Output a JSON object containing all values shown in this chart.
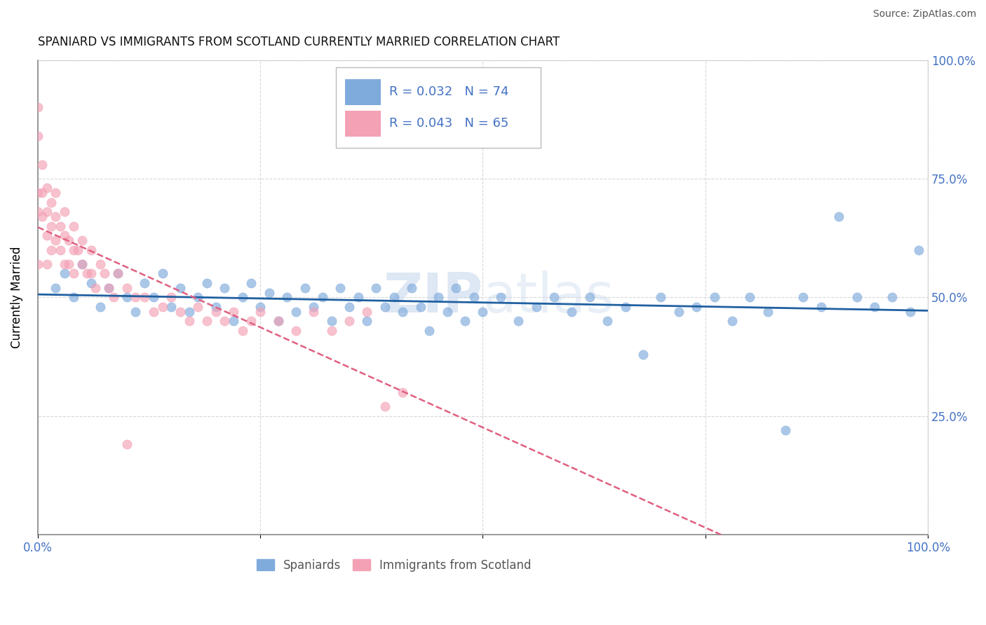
{
  "title": "SPANIARD VS IMMIGRANTS FROM SCOTLAND CURRENTLY MARRIED CORRELATION CHART",
  "source": "Source: ZipAtlas.com",
  "xlabel": "",
  "ylabel": "Currently Married",
  "xlim": [
    0,
    1.0
  ],
  "ylim": [
    0,
    1.0
  ],
  "xticks": [
    0.0,
    0.25,
    0.5,
    0.75,
    1.0
  ],
  "xticklabels": [
    "0.0%",
    "",
    "",
    "",
    "100.0%"
  ],
  "yticks": [
    0.0,
    0.25,
    0.5,
    0.75,
    1.0
  ],
  "yticklabels_right": [
    "",
    "25.0%",
    "50.0%",
    "75.0%",
    "100.0%"
  ],
  "spaniard_color": "#7faadc",
  "scotland_color": "#f4a0b5",
  "spaniard_line_color": "#2060a0",
  "scotland_line_color": "#e06080",
  "legend_label_1": "R = 0.032   N = 74",
  "legend_label_2": "R = 0.043   N = 65",
  "legend_labels": [
    "Spaniards",
    "Immigrants from Scotland"
  ],
  "spaniard_x": [
    0.02,
    0.03,
    0.04,
    0.05,
    0.06,
    0.07,
    0.08,
    0.09,
    0.1,
    0.11,
    0.12,
    0.13,
    0.14,
    0.15,
    0.16,
    0.17,
    0.18,
    0.19,
    0.2,
    0.21,
    0.22,
    0.23,
    0.24,
    0.25,
    0.26,
    0.27,
    0.28,
    0.29,
    0.3,
    0.31,
    0.32,
    0.33,
    0.34,
    0.35,
    0.36,
    0.37,
    0.38,
    0.39,
    0.4,
    0.41,
    0.42,
    0.43,
    0.44,
    0.45,
    0.46,
    0.47,
    0.48,
    0.49,
    0.5,
    0.52,
    0.54,
    0.56,
    0.58,
    0.6,
    0.62,
    0.64,
    0.66,
    0.68,
    0.7,
    0.72,
    0.74,
    0.76,
    0.78,
    0.8,
    0.82,
    0.84,
    0.86,
    0.88,
    0.9,
    0.92,
    0.94,
    0.96,
    0.98,
    0.99
  ],
  "spaniard_y": [
    0.52,
    0.55,
    0.5,
    0.57,
    0.53,
    0.48,
    0.52,
    0.55,
    0.5,
    0.47,
    0.53,
    0.5,
    0.55,
    0.48,
    0.52,
    0.47,
    0.5,
    0.53,
    0.48,
    0.52,
    0.45,
    0.5,
    0.53,
    0.48,
    0.51,
    0.45,
    0.5,
    0.47,
    0.52,
    0.48,
    0.5,
    0.45,
    0.52,
    0.48,
    0.5,
    0.45,
    0.52,
    0.48,
    0.5,
    0.47,
    0.52,
    0.48,
    0.43,
    0.5,
    0.47,
    0.52,
    0.45,
    0.5,
    0.47,
    0.5,
    0.45,
    0.48,
    0.5,
    0.47,
    0.5,
    0.45,
    0.48,
    0.38,
    0.5,
    0.47,
    0.48,
    0.5,
    0.45,
    0.5,
    0.47,
    0.22,
    0.5,
    0.48,
    0.67,
    0.5,
    0.48,
    0.5,
    0.47,
    0.6
  ],
  "scotland_x": [
    0.0,
    0.0,
    0.0,
    0.0,
    0.0,
    0.005,
    0.005,
    0.005,
    0.01,
    0.01,
    0.01,
    0.01,
    0.015,
    0.015,
    0.015,
    0.02,
    0.02,
    0.02,
    0.025,
    0.025,
    0.03,
    0.03,
    0.03,
    0.035,
    0.035,
    0.04,
    0.04,
    0.04,
    0.045,
    0.05,
    0.05,
    0.055,
    0.06,
    0.06,
    0.065,
    0.07,
    0.075,
    0.08,
    0.085,
    0.09,
    0.1,
    0.11,
    0.12,
    0.13,
    0.14,
    0.15,
    0.16,
    0.17,
    0.18,
    0.19,
    0.2,
    0.21,
    0.22,
    0.23,
    0.24,
    0.25,
    0.27,
    0.29,
    0.31,
    0.33,
    0.35,
    0.37,
    0.39,
    0.41,
    0.1
  ],
  "scotland_y": [
    0.9,
    0.84,
    0.72,
    0.68,
    0.57,
    0.78,
    0.72,
    0.67,
    0.73,
    0.68,
    0.63,
    0.57,
    0.7,
    0.65,
    0.6,
    0.72,
    0.67,
    0.62,
    0.65,
    0.6,
    0.68,
    0.63,
    0.57,
    0.62,
    0.57,
    0.65,
    0.6,
    0.55,
    0.6,
    0.62,
    0.57,
    0.55,
    0.6,
    0.55,
    0.52,
    0.57,
    0.55,
    0.52,
    0.5,
    0.55,
    0.52,
    0.5,
    0.5,
    0.47,
    0.48,
    0.5,
    0.47,
    0.45,
    0.48,
    0.45,
    0.47,
    0.45,
    0.47,
    0.43,
    0.45,
    0.47,
    0.45,
    0.43,
    0.47,
    0.43,
    0.45,
    0.47,
    0.27,
    0.3,
    0.19
  ]
}
